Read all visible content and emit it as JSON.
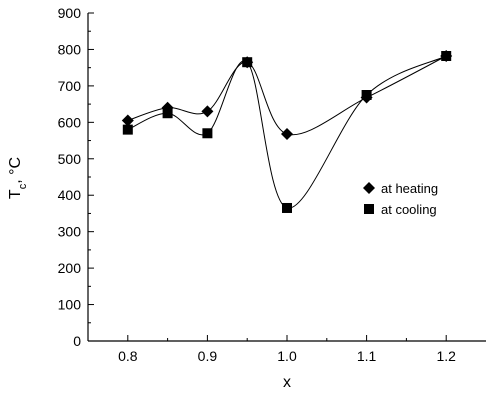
{
  "chart_data": {
    "type": "line",
    "xlabel": "x",
    "ylabel": "T",
    "ylabel_sub": "c",
    "ylabel_suffix": ", °C",
    "xlim": [
      0.75,
      1.25
    ],
    "ylim": [
      0,
      900
    ],
    "xticks": [
      "0.8",
      "0.9",
      "1.0",
      "1.1",
      "1.2"
    ],
    "yticks": [
      "0",
      "100",
      "200",
      "300",
      "400",
      "500",
      "600",
      "700",
      "800",
      "900"
    ],
    "legend_position": "right",
    "series": [
      {
        "name": "at heating",
        "marker": "diamond",
        "x": [
          0.8,
          0.85,
          0.9,
          0.95,
          1.0,
          1.1,
          1.2
        ],
        "y": [
          605,
          640,
          630,
          765,
          568,
          668,
          782
        ]
      },
      {
        "name": "at cooling",
        "marker": "square",
        "x": [
          0.8,
          0.85,
          0.9,
          0.95,
          1.0,
          1.1,
          1.2
        ],
        "y": [
          580,
          625,
          570,
          765,
          365,
          675,
          782
        ]
      }
    ]
  }
}
